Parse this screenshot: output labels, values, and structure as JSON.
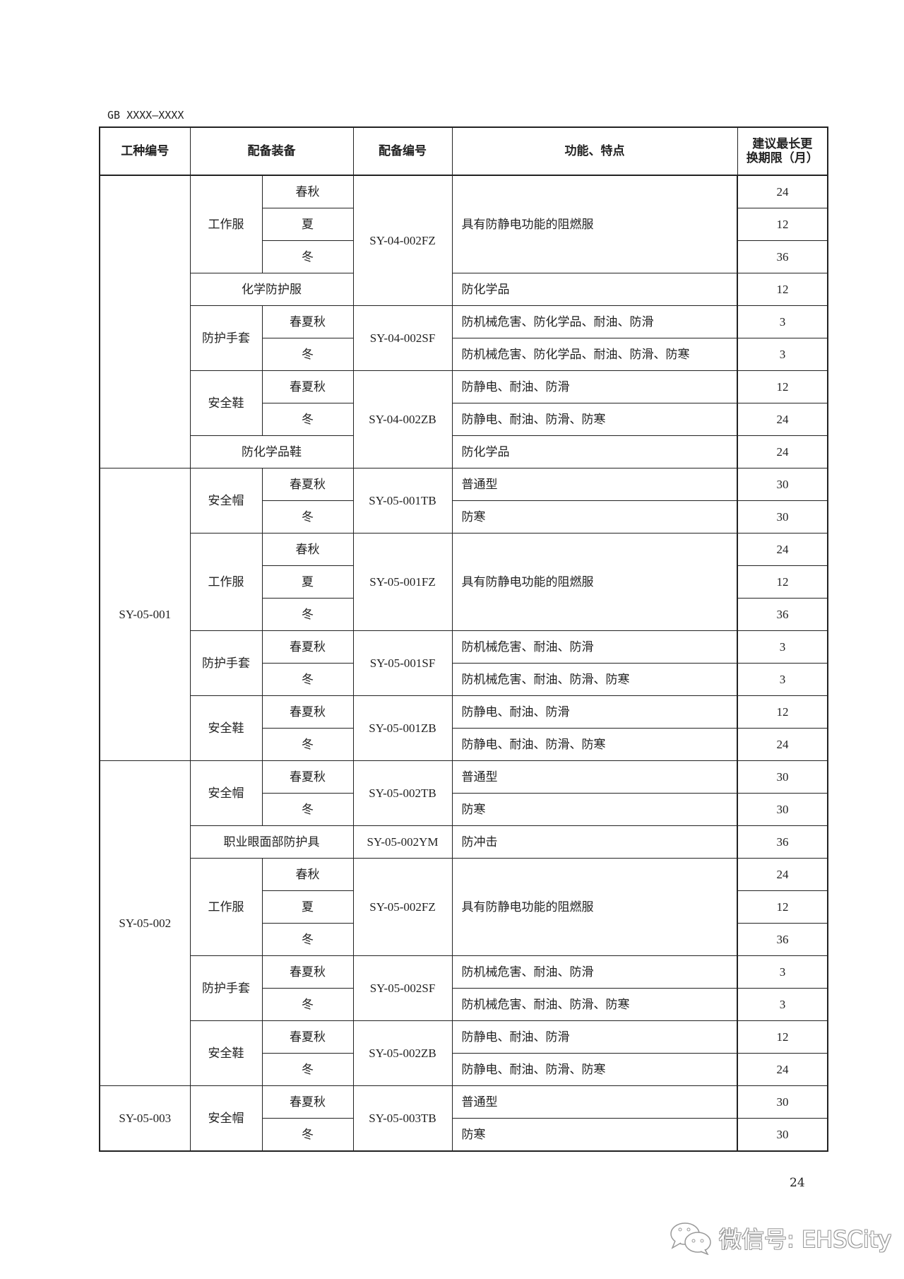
{
  "doc_id": "GB XXXX—XXXX",
  "page_number": "24",
  "watermark": "微信号: EHSCity",
  "header": {
    "col_worktype": "工种编号",
    "col_equipment": "配备装备",
    "col_number": "配备编号",
    "col_function": "功能、特点",
    "col_months_line1": "建议最长更",
    "col_months_line2": "换期限（月）"
  },
  "groups": [
    {
      "code": "",
      "blocks": [
        {
          "number": "SY-04-002FZ",
          "items": [
            {
              "name": "工作服",
              "function": "具有防静电功能的阻燃服",
              "rows": [
                {
                  "season": "春秋",
                  "months": "24"
                },
                {
                  "season": "夏",
                  "months": "12"
                },
                {
                  "season": "冬",
                  "months": "36"
                }
              ]
            },
            {
              "name": "化学防护服",
              "rows": [
                {
                  "function": "防化学品",
                  "months": "12"
                }
              ]
            }
          ]
        },
        {
          "number": "SY-04-002SF",
          "items": [
            {
              "name": "防护手套",
              "rows": [
                {
                  "season": "春夏秋",
                  "function": "防机械危害、防化学品、耐油、防滑",
                  "months": "3"
                },
                {
                  "season": "冬",
                  "function": "防机械危害、防化学品、耐油、防滑、防寒",
                  "months": "3"
                }
              ]
            }
          ]
        },
        {
          "number": "SY-04-002ZB",
          "items": [
            {
              "name": "安全鞋",
              "rows": [
                {
                  "season": "春夏秋",
                  "function": "防静电、耐油、防滑",
                  "months": "12"
                },
                {
                  "season": "冬",
                  "function": "防静电、耐油、防滑、防寒",
                  "months": "24"
                }
              ]
            },
            {
              "name": "防化学品鞋",
              "rows": [
                {
                  "function": "防化学品",
                  "months": "24"
                }
              ]
            }
          ]
        }
      ]
    },
    {
      "code": "SY-05-001",
      "blocks": [
        {
          "number": "SY-05-001TB",
          "items": [
            {
              "name": "安全帽",
              "rows": [
                {
                  "season": "春夏秋",
                  "function": "普通型",
                  "months": "30"
                },
                {
                  "season": "冬",
                  "function": "防寒",
                  "months": "30"
                }
              ]
            }
          ]
        },
        {
          "number": "SY-05-001FZ",
          "items": [
            {
              "name": "工作服",
              "function": "具有防静电功能的阻燃服",
              "rows": [
                {
                  "season": "春秋",
                  "months": "24"
                },
                {
                  "season": "夏",
                  "months": "12"
                },
                {
                  "season": "冬",
                  "months": "36"
                }
              ]
            }
          ]
        },
        {
          "number": "SY-05-001SF",
          "items": [
            {
              "name": "防护手套",
              "rows": [
                {
                  "season": "春夏秋",
                  "function": "防机械危害、耐油、防滑",
                  "months": "3"
                },
                {
                  "season": "冬",
                  "function": "防机械危害、耐油、防滑、防寒",
                  "months": "3"
                }
              ]
            }
          ]
        },
        {
          "number": "SY-05-001ZB",
          "items": [
            {
              "name": "安全鞋",
              "rows": [
                {
                  "season": "春夏秋",
                  "function": "防静电、耐油、防滑",
                  "months": "12"
                },
                {
                  "season": "冬",
                  "function": "防静电、耐油、防滑、防寒",
                  "months": "24"
                }
              ]
            }
          ]
        }
      ]
    },
    {
      "code": "SY-05-002",
      "blocks": [
        {
          "number": "SY-05-002TB",
          "items": [
            {
              "name": "安全帽",
              "rows": [
                {
                  "season": "春夏秋",
                  "function": "普通型",
                  "months": "30"
                },
                {
                  "season": "冬",
                  "function": "防寒",
                  "months": "30"
                }
              ]
            }
          ]
        },
        {
          "number": "SY-05-002YM",
          "items": [
            {
              "name": "职业眼面部防护具",
              "rows": [
                {
                  "function": "防冲击",
                  "months": "36"
                }
              ]
            }
          ]
        },
        {
          "number": "SY-05-002FZ",
          "items": [
            {
              "name": "工作服",
              "function": "具有防静电功能的阻燃服",
              "rows": [
                {
                  "season": "春秋",
                  "months": "24"
                },
                {
                  "season": "夏",
                  "months": "12"
                },
                {
                  "season": "冬",
                  "months": "36"
                }
              ]
            }
          ]
        },
        {
          "number": "SY-05-002SF",
          "items": [
            {
              "name": "防护手套",
              "rows": [
                {
                  "season": "春夏秋",
                  "function": "防机械危害、耐油、防滑",
                  "months": "3"
                },
                {
                  "season": "冬",
                  "function": "防机械危害、耐油、防滑、防寒",
                  "months": "3"
                }
              ]
            }
          ]
        },
        {
          "number": "SY-05-002ZB",
          "items": [
            {
              "name": "安全鞋",
              "rows": [
                {
                  "season": "春夏秋",
                  "function": "防静电、耐油、防滑",
                  "months": "12"
                },
                {
                  "season": "冬",
                  "function": "防静电、耐油、防滑、防寒",
                  "months": "24"
                }
              ]
            }
          ]
        }
      ]
    },
    {
      "code": "SY-05-003",
      "blocks": [
        {
          "number": "SY-05-003TB",
          "items": [
            {
              "name": "安全帽",
              "rows": [
                {
                  "season": "春夏秋",
                  "function": "普通型",
                  "months": "30"
                },
                {
                  "season": "冬",
                  "function": "防寒",
                  "months": "30"
                }
              ]
            }
          ]
        }
      ]
    }
  ]
}
